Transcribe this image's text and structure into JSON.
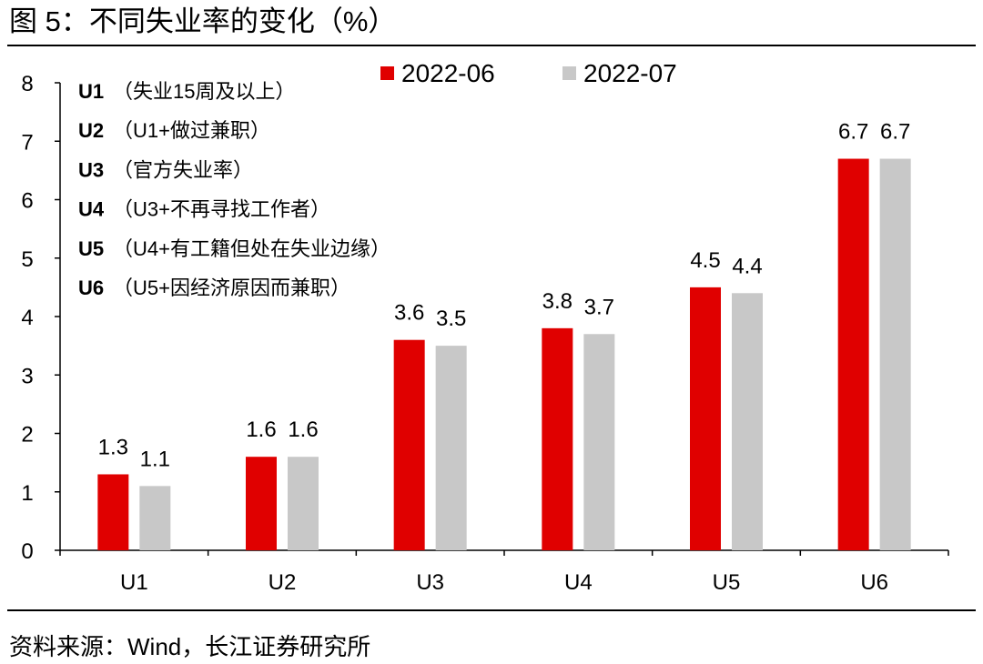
{
  "title": "图 5：不同失业率的变化（%）",
  "source": "资料来源：Wind，长江证券研究所",
  "chart_data": {
    "type": "bar",
    "title": "",
    "xlabel": "",
    "ylabel": "",
    "ylim": [
      0,
      8
    ],
    "yticks": [
      "0",
      "1",
      "2",
      "3",
      "4",
      "5",
      "6",
      "7",
      "8"
    ],
    "categories": [
      "U1",
      "U2",
      "U3",
      "U4",
      "U5",
      "U6"
    ],
    "series": [
      {
        "name": "2022-06",
        "color": "#e00000",
        "values": [
          1.3,
          1.6,
          3.6,
          3.8,
          4.5,
          6.7
        ]
      },
      {
        "name": "2022-07",
        "color": "#c8c8c8",
        "values": [
          1.1,
          1.6,
          3.5,
          3.7,
          4.4,
          6.7
        ]
      }
    ],
    "legend_position": "top-center",
    "grid": false,
    "annotations": [
      {
        "code": "U1",
        "text": "（失业15周及以上）"
      },
      {
        "code": "U2",
        "text": "（U1+做过兼职）"
      },
      {
        "code": "U3",
        "text": "（官方失业率）"
      },
      {
        "code": "U4",
        "text": "（U3+不再寻找工作者）"
      },
      {
        "code": "U5",
        "text": "（U4+有工籍但处在失业边缘）"
      },
      {
        "code": "U6",
        "text": "（U5+因经济原因而兼职）"
      }
    ]
  }
}
